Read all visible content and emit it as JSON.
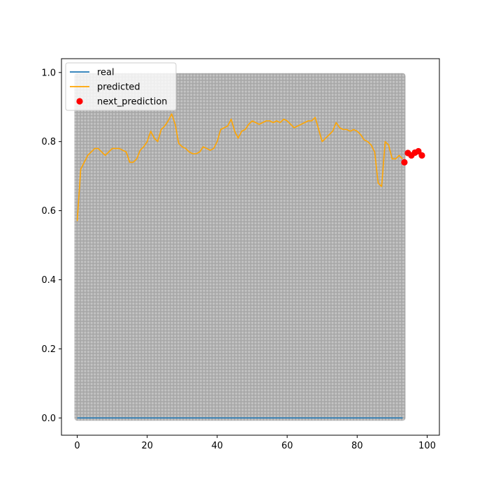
{
  "chart_data": {
    "type": "line",
    "title": "",
    "xlabel": "",
    "ylabel": "",
    "xlim": [
      -4.5,
      103.5
    ],
    "ylim": [
      -0.05,
      1.04
    ],
    "xticks": [
      0,
      20,
      40,
      60,
      80,
      100
    ],
    "yticks": [
      0.0,
      0.2,
      0.4,
      0.6,
      0.8,
      1.0
    ],
    "xtick_labels": [
      "0",
      "20",
      "40",
      "60",
      "80",
      "100"
    ],
    "ytick_labels": [
      "0.0",
      "0.2",
      "0.4",
      "0.6",
      "0.8",
      "1.0"
    ],
    "grid": false,
    "legend_position": "top-left",
    "background_band": {
      "x_range": [
        0,
        93
      ],
      "y_range": [
        0,
        0.99
      ],
      "color": "#b3b3b3"
    },
    "series": [
      {
        "name": "real",
        "kind": "line",
        "color": "#1f77b4",
        "x": [
          0,
          93
        ],
        "y": [
          0.0,
          0.0
        ]
      },
      {
        "name": "predicted",
        "kind": "line",
        "color": "#ffa500",
        "x": [
          0,
          1,
          2,
          3,
          4,
          5,
          6,
          7,
          8,
          9,
          10,
          11,
          12,
          13,
          14,
          15,
          16,
          17,
          18,
          19,
          20,
          21,
          22,
          23,
          24,
          25,
          26,
          27,
          28,
          29,
          30,
          31,
          32,
          33,
          34,
          35,
          36,
          37,
          38,
          39,
          40,
          41,
          42,
          43,
          44,
          45,
          46,
          47,
          48,
          49,
          50,
          51,
          52,
          53,
          54,
          55,
          56,
          57,
          58,
          59,
          60,
          61,
          62,
          63,
          64,
          65,
          66,
          67,
          68,
          69,
          70,
          71,
          72,
          73,
          74,
          75,
          76,
          77,
          78,
          79,
          80,
          81,
          82,
          83,
          84,
          85,
          86,
          87,
          88,
          89,
          90,
          91,
          92,
          93
        ],
        "y": [
          0.57,
          0.72,
          0.74,
          0.76,
          0.77,
          0.78,
          0.78,
          0.77,
          0.76,
          0.77,
          0.78,
          0.78,
          0.78,
          0.775,
          0.77,
          0.74,
          0.74,
          0.75,
          0.775,
          0.785,
          0.8,
          0.83,
          0.81,
          0.8,
          0.835,
          0.845,
          0.86,
          0.88,
          0.85,
          0.795,
          0.785,
          0.78,
          0.77,
          0.765,
          0.765,
          0.77,
          0.785,
          0.78,
          0.775,
          0.78,
          0.8,
          0.835,
          0.84,
          0.845,
          0.865,
          0.83,
          0.81,
          0.83,
          0.835,
          0.85,
          0.86,
          0.855,
          0.85,
          0.855,
          0.86,
          0.86,
          0.855,
          0.86,
          0.855,
          0.865,
          0.86,
          0.85,
          0.84,
          0.845,
          0.85,
          0.855,
          0.86,
          0.86,
          0.87,
          0.835,
          0.8,
          0.81,
          0.82,
          0.83,
          0.855,
          0.84,
          0.835,
          0.835,
          0.83,
          0.835,
          0.83,
          0.82,
          0.805,
          0.8,
          0.79,
          0.77,
          0.68,
          0.67,
          0.8,
          0.79,
          0.75,
          0.75,
          0.76,
          0.75
        ]
      },
      {
        "name": "next_prediction",
        "kind": "scatter",
        "color": "#ff0000",
        "x": [
          93.5,
          94.5,
          95.5,
          96.5,
          97.5,
          98.5
        ],
        "y": [
          0.74,
          0.767,
          0.76,
          0.768,
          0.772,
          0.76
        ]
      }
    ],
    "legend": [
      "real",
      "predicted",
      "next_prediction"
    ]
  }
}
